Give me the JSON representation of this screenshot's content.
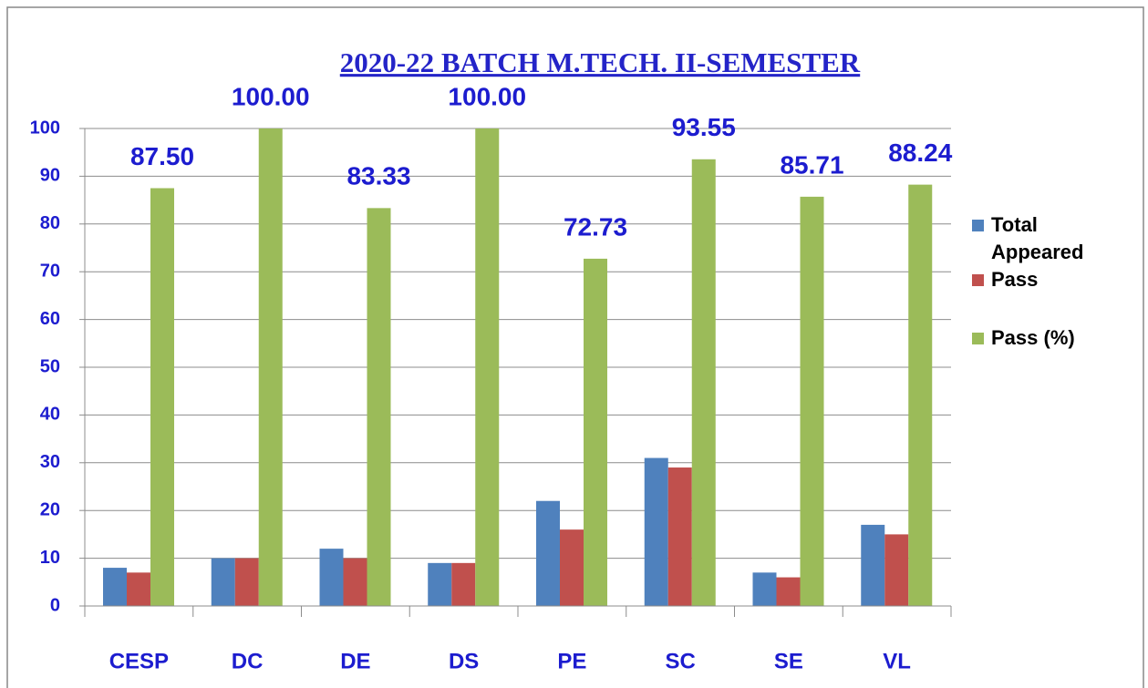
{
  "chart_data": {
    "type": "bar",
    "title": "2020-22 BATCH  M.TECH. II-SEMESTER",
    "categories": [
      "CESP",
      "DC",
      "DE",
      "DS",
      "PE",
      "SC",
      "SE",
      "VL"
    ],
    "series": [
      {
        "name": "Total Appeared",
        "color": "#4f81bd",
        "values": [
          8,
          10,
          12,
          9,
          22,
          31,
          7,
          17
        ]
      },
      {
        "name": "Pass",
        "color": "#c0504d",
        "values": [
          7,
          10,
          10,
          9,
          16,
          29,
          6,
          15
        ]
      },
      {
        "name": "Pass (%)",
        "color": "#9bbb59",
        "values": [
          87.5,
          100,
          83.33,
          100,
          72.73,
          93.55,
          85.71,
          88.24
        ],
        "value_labels": [
          "87.50",
          "100.00",
          "83.33",
          "100.00",
          "72.73",
          "93.55",
          "85.71",
          "88.24"
        ]
      }
    ],
    "ylim": [
      0,
      100
    ],
    "yticks": [
      0,
      10,
      20,
      30,
      40,
      50,
      60,
      70,
      80,
      90,
      100
    ],
    "grid": true,
    "legend": "right"
  }
}
